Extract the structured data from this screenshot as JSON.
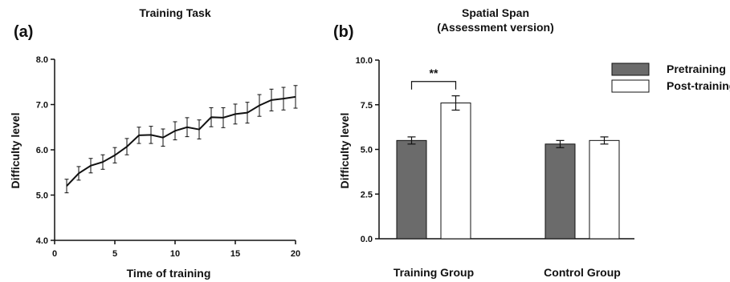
{
  "panels": {
    "a": {
      "label": "(a)"
    },
    "b": {
      "label": "(b)"
    }
  },
  "colors": {
    "line": "#111111",
    "pretraining": "#6b6b6b",
    "post_training": "#ffffff",
    "axis": "#111111"
  },
  "chart_data": [
    {
      "type": "line",
      "title": "Training Task",
      "xlabel": "Time of training",
      "ylabel": "Difficulty level",
      "xlim": [
        0,
        20
      ],
      "ylim": [
        4.0,
        8.0
      ],
      "xticks": [
        0,
        5,
        10,
        15,
        20
      ],
      "xtick_labels": [
        "0",
        "5",
        "10",
        "15",
        "20"
      ],
      "yticks": [
        4.0,
        5.0,
        6.0,
        7.0,
        8.0
      ],
      "ytick_labels": [
        "4.0",
        "5.0",
        "6.0",
        "7.0",
        "8.0"
      ],
      "grid": false,
      "x": [
        1,
        2,
        3,
        4,
        5,
        6,
        7,
        8,
        9,
        10,
        11,
        12,
        13,
        14,
        15,
        16,
        17,
        18,
        19,
        20
      ],
      "values": [
        5.2,
        5.48,
        5.65,
        5.73,
        5.88,
        6.07,
        6.32,
        6.33,
        6.27,
        6.42,
        6.5,
        6.45,
        6.72,
        6.71,
        6.79,
        6.82,
        6.98,
        7.1,
        7.13,
        7.17
      ],
      "errors": [
        0.15,
        0.15,
        0.16,
        0.16,
        0.17,
        0.18,
        0.18,
        0.19,
        0.19,
        0.2,
        0.21,
        0.21,
        0.21,
        0.22,
        0.22,
        0.23,
        0.24,
        0.24,
        0.25,
        0.25
      ]
    },
    {
      "type": "bar",
      "title": "Spatial Span",
      "subtitle": "(Assessment version)",
      "xlabel": "",
      "ylabel": "Difficulty level",
      "ylim": [
        0,
        10
      ],
      "yticks": [
        0,
        2.5,
        5.0,
        7.5,
        10.0
      ],
      "ytick_labels": [
        "0.0",
        "2.5",
        "5.0",
        "7.5",
        "10.0"
      ],
      "grid": false,
      "legend_position": "top-right",
      "categories": [
        "Training Group",
        "Control Group"
      ],
      "series": [
        {
          "name": "Pretraining",
          "values": [
            5.5,
            5.3
          ],
          "errors": [
            0.2,
            0.2
          ]
        },
        {
          "name": "Post-training",
          "values": [
            7.6,
            5.5
          ],
          "errors": [
            0.4,
            0.2
          ]
        }
      ],
      "annotations": [
        {
          "text": "**",
          "group_index": 0
        }
      ]
    }
  ]
}
